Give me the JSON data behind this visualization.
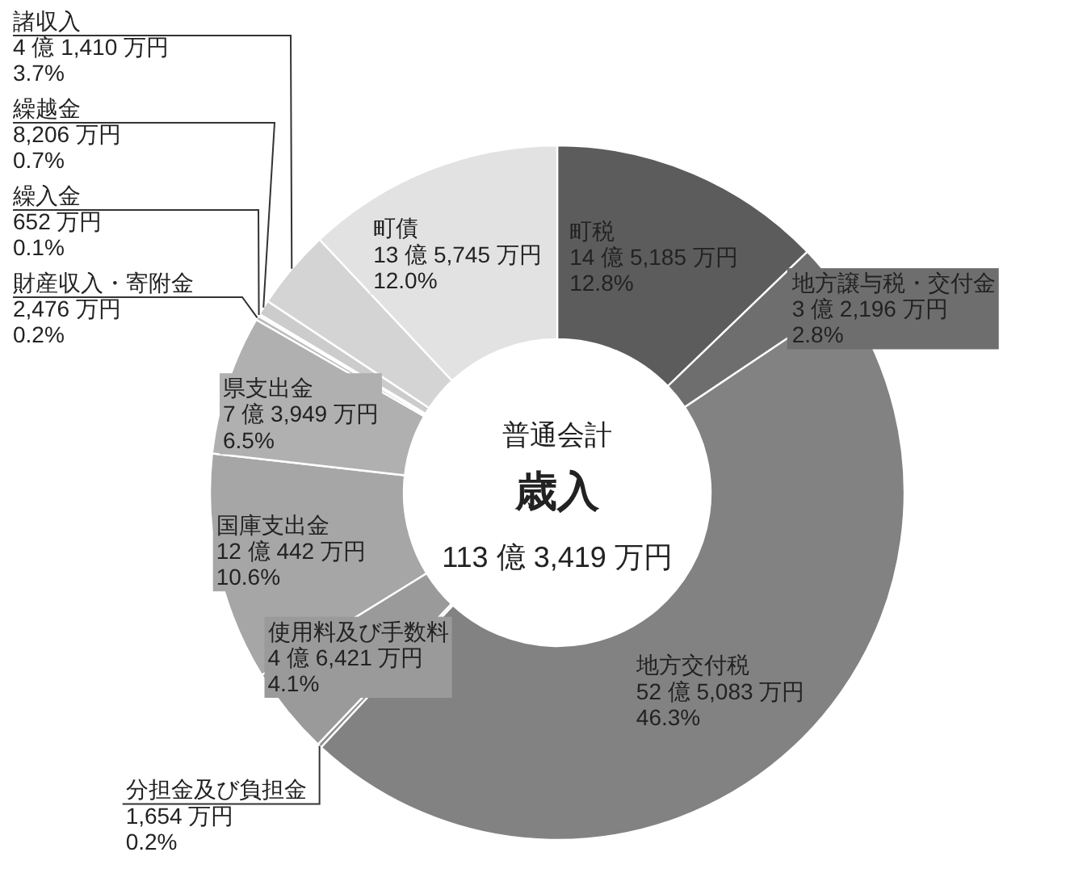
{
  "chart_data": {
    "type": "donut",
    "title": "歳入",
    "subtitle": "普通会計",
    "annotations": [
      "113 億 3,419 万円"
    ],
    "categories": [
      "町税",
      "地方譲与税・交付金",
      "地方交付税",
      "分担金及び負担金",
      "使用料及び手数料",
      "国庫支出金",
      "県支出金",
      "財産収入・寄附金",
      "繰入金",
      "繰越金",
      "諸収入",
      "町債"
    ],
    "values": [
      12.8,
      2.8,
      46.3,
      0.2,
      4.1,
      10.6,
      6.5,
      0.2,
      0.1,
      0.7,
      3.7,
      12.0
    ],
    "value_labels": [
      "14 億 5,185 万円\n12.8%",
      "3 億 2,196 万円\n2.8%",
      "52 億 5,083 万円\n46.3%",
      "1,654 万円\n0.2%",
      "4 億 6,421 万円\n4.1%",
      "12 億 442 万円\n10.6%",
      "7 億 3,949 万円\n6.5%",
      "2,476 万円\n0.2%",
      "652 万円\n0.1%",
      "8,206 万円\n0.7%",
      "4 億 1,410 万円\n3.7%",
      "13 億 5,745 万円\n12.0%"
    ],
    "colors": [
      "#5c5c5c",
      "#6e6e6e",
      "#828282",
      "#8e8e8e",
      "#9a9a9a",
      "#a6a6a6",
      "#b0b0b0",
      "#bababa",
      "#c4c4c4",
      "#cccccc",
      "#d4d4d4",
      "#e2e2e2"
    ]
  }
}
